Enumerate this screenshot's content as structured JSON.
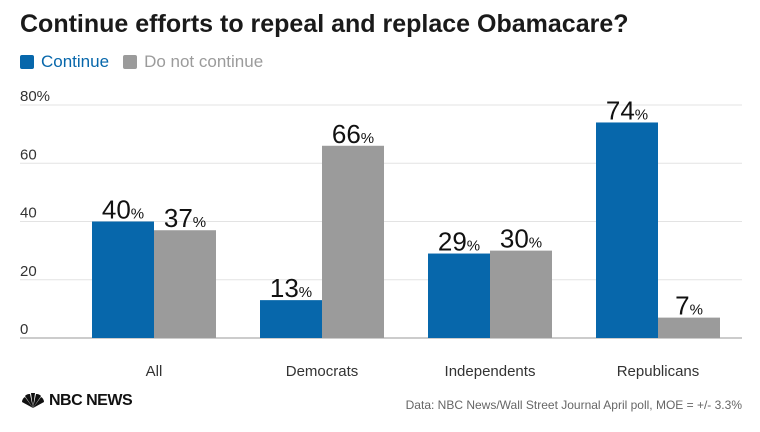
{
  "chart_data": {
    "type": "bar",
    "title": "Continue efforts to repeal and replace Obamacare?",
    "categories": [
      "All",
      "Democrats",
      "Independents",
      "Republicans"
    ],
    "series": [
      {
        "name": "Continue",
        "values": [
          40,
          13,
          29,
          74
        ],
        "color": "#0767ab"
      },
      {
        "name": "Do not continue",
        "values": [
          37,
          66,
          30,
          7
        ],
        "color": "#9b9b9b"
      }
    ],
    "ylim": [
      0,
      80
    ],
    "yticks": [
      0,
      20,
      40,
      60,
      80
    ],
    "ytick_labels": [
      "0",
      "20",
      "40",
      "60",
      "80%"
    ],
    "value_suffix": "%",
    "xlabel": "",
    "ylabel": "",
    "grid": true,
    "legend": "top-left"
  },
  "footer": {
    "logo_text": "NBC NEWS",
    "source": "Data: NBC News/Wall Street Journal April poll, MOE = +/- 3.3%"
  }
}
